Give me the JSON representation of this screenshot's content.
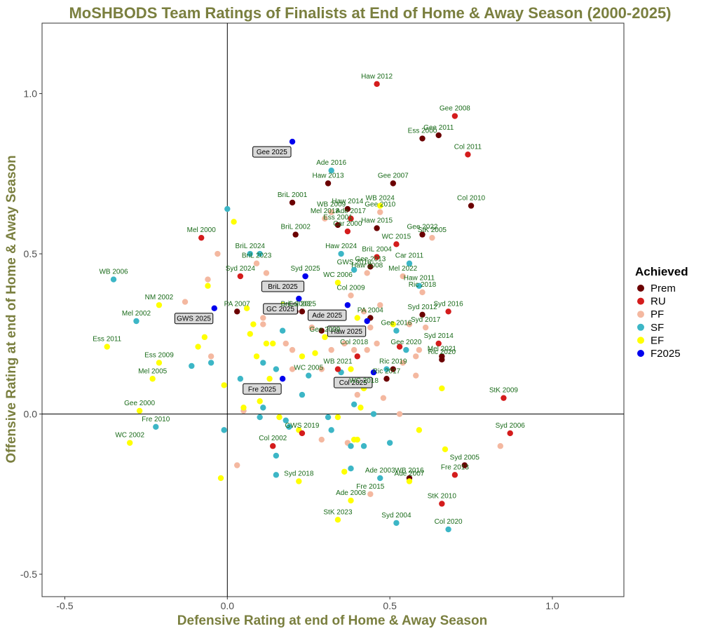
{
  "chart_data": {
    "type": "scatter",
    "title": "MoSHBODS Team Ratings of Finalists at End of Home & Away Season (2000-2025)",
    "xlabel": "Defensive Rating at end of Home & Away Season",
    "ylabel": "Offensive Rating at end of Home & Away Season",
    "xlim": [
      -0.57,
      1.22
    ],
    "ylim": [
      -0.57,
      1.22
    ],
    "xticks": [
      -0.5,
      0.0,
      0.5,
      1.0
    ],
    "xtick_labels": [
      "-0.5",
      "0.0",
      "0.5",
      "1.0"
    ],
    "yticks": [
      -0.5,
      0.0,
      0.5,
      1.0
    ],
    "ytick_labels": [
      "-0.5",
      "0.0",
      "0.5",
      "1.0"
    ],
    "reference_lines": {
      "x": 0,
      "y": 0
    },
    "grid": false,
    "legend": {
      "title": "Achieved",
      "position": "right",
      "entries": [
        {
          "name": "Prem",
          "color": "#6b0000"
        },
        {
          "name": "RU",
          "color": "#d41c1c"
        },
        {
          "name": "PF",
          "color": "#f4b8a0"
        },
        {
          "name": "SF",
          "color": "#3cb6c6"
        },
        {
          "name": "EF",
          "color": "#ffff00"
        },
        {
          "name": "F2025",
          "color": "#0000ee"
        }
      ]
    },
    "points": [
      {
        "label": "Haw 2012",
        "x": 0.46,
        "y": 1.03,
        "cat": "RU"
      },
      {
        "label": "Gee 2008",
        "x": 0.7,
        "y": 0.93,
        "cat": "RU"
      },
      {
        "label": "Gee 2011",
        "x": 0.65,
        "y": 0.87,
        "cat": "Prem"
      },
      {
        "label": "Ess 2000",
        "x": 0.6,
        "y": 0.86,
        "cat": "Prem"
      },
      {
        "label": "Col 2011",
        "x": 0.74,
        "y": 0.81,
        "cat": "RU"
      },
      {
        "label": "Gee 2025",
        "x": 0.2,
        "y": 0.85,
        "cat": "F2025",
        "boxed": true
      },
      {
        "label": "Ade 2016",
        "x": 0.32,
        "y": 0.76,
        "cat": "SF"
      },
      {
        "label": "Haw 2013",
        "x": 0.31,
        "y": 0.72,
        "cat": "Prem"
      },
      {
        "label": "Gee 2007",
        "x": 0.51,
        "y": 0.72,
        "cat": "Prem"
      },
      {
        "label": "BriL 2001",
        "x": 0.2,
        "y": 0.66,
        "cat": "Prem"
      },
      {
        "label": "WB 2024",
        "x": 0.47,
        "y": 0.65,
        "cat": "EF"
      },
      {
        "label": "Col 2010",
        "x": 0.75,
        "y": 0.65,
        "cat": "Prem"
      },
      {
        "label": "WB 2009",
        "x": 0.32,
        "y": 0.63,
        "cat": "PF"
      },
      {
        "label": "Haw 2014",
        "x": 0.37,
        "y": 0.64,
        "cat": "Prem"
      },
      {
        "label": "Gee 2010",
        "x": 0.47,
        "y": 0.63,
        "cat": "PF"
      },
      {
        "label": "Mel 2018",
        "x": 0.3,
        "y": 0.61,
        "cat": "PF"
      },
      {
        "label": "Ade 2017",
        "x": 0.38,
        "y": 0.61,
        "cat": "RU"
      },
      {
        "label": "BriL 2002",
        "x": 0.21,
        "y": 0.56,
        "cat": "Prem"
      },
      {
        "label": "Haw 2015",
        "x": 0.46,
        "y": 0.58,
        "cat": "Prem"
      },
      {
        "label": "Gee 2022",
        "x": 0.6,
        "y": 0.56,
        "cat": "Prem"
      },
      {
        "label": "Ess 2001",
        "x": 0.34,
        "y": 0.59,
        "cat": "Prem"
      },
      {
        "label": "Car 2000",
        "x": 0.37,
        "y": 0.57,
        "cat": "RU"
      },
      {
        "label": "WC 2015",
        "x": 0.52,
        "y": 0.53,
        "cat": "RU"
      },
      {
        "label": "StK 2005",
        "x": 0.63,
        "y": 0.55,
        "cat": "PF"
      },
      {
        "label": "Mel 2000",
        "x": -0.08,
        "y": 0.55,
        "cat": "RU"
      },
      {
        "label": "BriL 2024",
        "x": 0.07,
        "y": 0.5,
        "cat": "SF"
      },
      {
        "label": "BriL 2023",
        "x": 0.09,
        "y": 0.47,
        "cat": "PF"
      },
      {
        "label": "Haw 2024",
        "x": 0.35,
        "y": 0.5,
        "cat": "SF"
      },
      {
        "label": "BriL 2004",
        "x": 0.46,
        "y": 0.49,
        "cat": "RU"
      },
      {
        "label": "GWS 2016",
        "x": 0.39,
        "y": 0.45,
        "cat": "SF"
      },
      {
        "label": "Gee 2013",
        "x": 0.44,
        "y": 0.46,
        "cat": "Prem"
      },
      {
        "label": "Car 2011",
        "x": 0.56,
        "y": 0.47,
        "cat": "SF"
      },
      {
        "label": "Syd 2025",
        "x": 0.24,
        "y": 0.43,
        "cat": "F2025"
      },
      {
        "label": "BriL 2025",
        "x": 0.24,
        "y": 0.43,
        "cat": "F2025",
        "boxed": true
      },
      {
        "label": "Haw 2008",
        "x": 0.43,
        "y": 0.44,
        "cat": "PF"
      },
      {
        "label": "WC 2006",
        "x": 0.34,
        "y": 0.41,
        "cat": "EF"
      },
      {
        "label": "Mel 2022",
        "x": 0.54,
        "y": 0.43,
        "cat": "PF"
      },
      {
        "label": "WB 2006",
        "x": -0.35,
        "y": 0.42,
        "cat": "SF"
      },
      {
        "label": "Syd 2024",
        "x": 0.04,
        "y": 0.43,
        "cat": "RU"
      },
      {
        "label": "Haw 2011",
        "x": 0.59,
        "y": 0.4,
        "cat": "SF"
      },
      {
        "label": "GC 2025",
        "x": 0.22,
        "y": 0.36,
        "cat": "F2025",
        "boxed": true
      },
      {
        "label": "Col 2009",
        "x": 0.38,
        "y": 0.37,
        "cat": "PF"
      },
      {
        "label": "Ric 2018",
        "x": 0.6,
        "y": 0.38,
        "cat": "PF"
      },
      {
        "label": "NM 2002",
        "x": -0.21,
        "y": 0.34,
        "cat": "EF"
      },
      {
        "label": "PA 2007",
        "x": 0.03,
        "y": 0.32,
        "cat": "Prem"
      },
      {
        "label": "BriL 2003",
        "x": 0.21,
        "y": 0.32,
        "cat": "Prem"
      },
      {
        "label": "GWS 2025",
        "x": -0.04,
        "y": 0.33,
        "cat": "F2025",
        "boxed": true
      },
      {
        "label": "Ade 2025",
        "x": 0.37,
        "y": 0.34,
        "cat": "F2025",
        "boxed": true
      },
      {
        "label": "Syd 2012",
        "x": 0.6,
        "y": 0.31,
        "cat": "Prem"
      },
      {
        "label": "Syd 2016",
        "x": 0.68,
        "y": 0.32,
        "cat": "RU"
      },
      {
        "label": "Col 2025",
        "x": 0.23,
        "y": 0.32,
        "cat": "Prem"
      },
      {
        "label": "PA 2004",
        "x": 0.44,
        "y": 0.3,
        "cat": "Prem"
      },
      {
        "label": "Mel 2002",
        "x": -0.28,
        "y": 0.29,
        "cat": "SF"
      },
      {
        "label": "Syd 2017",
        "x": 0.61,
        "y": 0.27,
        "cat": "PF"
      },
      {
        "label": "Haw 2025",
        "x": 0.43,
        "y": 0.29,
        "cat": "F2025",
        "boxed": true
      },
      {
        "label": "Gee 2016",
        "x": 0.52,
        "y": 0.26,
        "cat": "SF"
      },
      {
        "label": "Gee 2009",
        "x": 0.3,
        "y": 0.24,
        "cat": "EF"
      },
      {
        "label": "Ess 2011",
        "x": -0.37,
        "y": 0.21,
        "cat": "EF"
      },
      {
        "label": "Syd 2014",
        "x": 0.65,
        "y": 0.22,
        "cat": "RU"
      },
      {
        "label": "Col 2018",
        "x": 0.39,
        "y": 0.2,
        "cat": "PF"
      },
      {
        "label": "Gee 2020",
        "x": 0.55,
        "y": 0.2,
        "cat": "SF"
      },
      {
        "label": "Mel 2021",
        "x": 0.66,
        "y": 0.18,
        "cat": "Prem"
      },
      {
        "label": "Ess 2009",
        "x": -0.21,
        "y": 0.16,
        "cat": "EF"
      },
      {
        "label": "WB 2021",
        "x": 0.34,
        "y": 0.14,
        "cat": "RU"
      },
      {
        "label": "Ric 2019",
        "x": 0.51,
        "y": 0.14,
        "cat": "Prem"
      },
      {
        "label": "Ric 2020",
        "x": 0.66,
        "y": 0.17,
        "cat": "Prem"
      },
      {
        "label": "Fre 2025",
        "x": 0.17,
        "y": 0.11,
        "cat": "F2025",
        "boxed": true
      },
      {
        "label": "WC 2005",
        "x": 0.25,
        "y": 0.12,
        "cat": "SF"
      },
      {
        "label": "Col 2025",
        "x": 0.45,
        "y": 0.13,
        "cat": "F2025",
        "boxed": true
      },
      {
        "label": "Mel 2005",
        "x": -0.23,
        "y": 0.11,
        "cat": "EF"
      },
      {
        "label": "WC 2018",
        "x": 0.42,
        "y": 0.08,
        "cat": "EF"
      },
      {
        "label": "Ric 2017",
        "x": 0.49,
        "y": 0.11,
        "cat": "Prem"
      },
      {
        "label": "Gee 2000",
        "x": -0.27,
        "y": 0.01,
        "cat": "EF"
      },
      {
        "label": "StK 2009",
        "x": 0.85,
        "y": 0.05,
        "cat": "RU"
      },
      {
        "label": "Fre 2010",
        "x": -0.22,
        "y": -0.04,
        "cat": "SF"
      },
      {
        "label": "GWS 2019",
        "x": 0.23,
        "y": -0.06,
        "cat": "RU"
      },
      {
        "label": "Syd 2006",
        "x": 0.87,
        "y": -0.06,
        "cat": "RU"
      },
      {
        "label": "WC 2002",
        "x": -0.3,
        "y": -0.09,
        "cat": "EF"
      },
      {
        "label": "Col 2002",
        "x": 0.14,
        "y": -0.1,
        "cat": "RU"
      },
      {
        "label": "Syd 2005",
        "x": 0.73,
        "y": -0.16,
        "cat": "Prem"
      },
      {
        "label": "Syd 2018",
        "x": 0.22,
        "y": -0.21,
        "cat": "EF"
      },
      {
        "label": "Ade 2003",
        "x": 0.47,
        "y": -0.2,
        "cat": "SF"
      },
      {
        "label": "WB 2016",
        "x": 0.56,
        "y": -0.2,
        "cat": "Prem"
      },
      {
        "label": "Fre 2013",
        "x": 0.7,
        "y": -0.19,
        "cat": "RU"
      },
      {
        "label": "Ade 2007",
        "x": 0.56,
        "y": -0.21,
        "cat": "EF"
      },
      {
        "label": "Fre 2015",
        "x": 0.44,
        "y": -0.25,
        "cat": "PF"
      },
      {
        "label": "StK 2010",
        "x": 0.66,
        "y": -0.28,
        "cat": "RU"
      },
      {
        "label": "Ade 2008",
        "x": 0.38,
        "y": -0.27,
        "cat": "EF"
      },
      {
        "label": "Syd 2004",
        "x": 0.52,
        "y": -0.34,
        "cat": "SF"
      },
      {
        "label": "StK 2023",
        "x": 0.34,
        "y": -0.33,
        "cat": "EF"
      },
      {
        "label": "Col 2020",
        "x": 0.68,
        "y": -0.36,
        "cat": "SF"
      }
    ],
    "unlabeled_points": [
      [
        -0.03,
        0.5,
        "PF"
      ],
      [
        0.02,
        0.6,
        "EF"
      ],
      [
        0.0,
        0.64,
        "SF"
      ],
      [
        0.1,
        0.5,
        "SF"
      ],
      [
        0.12,
        0.44,
        "PF"
      ],
      [
        -0.06,
        0.42,
        "PF"
      ],
      [
        -0.06,
        0.4,
        "EF"
      ],
      [
        -0.13,
        0.35,
        "PF"
      ],
      [
        0.06,
        0.33,
        "EF"
      ],
      [
        0.11,
        0.3,
        "PF"
      ],
      [
        0.17,
        0.34,
        "EF"
      ],
      [
        0.14,
        0.32,
        "PF"
      ],
      [
        0.08,
        0.28,
        "EF"
      ],
      [
        0.11,
        0.28,
        "PF"
      ],
      [
        0.17,
        0.26,
        "SF"
      ],
      [
        0.07,
        0.25,
        "EF"
      ],
      [
        0.26,
        0.27,
        "PF"
      ],
      [
        0.29,
        0.26,
        "Prem"
      ],
      [
        0.37,
        0.26,
        "SF"
      ],
      [
        0.4,
        0.3,
        "EF"
      ],
      [
        0.42,
        0.32,
        "PF"
      ],
      [
        0.47,
        0.34,
        "PF"
      ],
      [
        0.44,
        0.27,
        "PF"
      ],
      [
        0.51,
        0.28,
        "EF"
      ],
      [
        0.56,
        0.28,
        "PF"
      ],
      [
        0.12,
        0.22,
        "EF"
      ],
      [
        0.14,
        0.22,
        "EF"
      ],
      [
        0.18,
        0.22,
        "PF"
      ],
      [
        -0.07,
        0.24,
        "EF"
      ],
      [
        -0.05,
        0.18,
        "PF"
      ],
      [
        -0.09,
        0.21,
        "EF"
      ],
      [
        0.09,
        0.18,
        "EF"
      ],
      [
        0.2,
        0.2,
        "PF"
      ],
      [
        0.23,
        0.18,
        "EF"
      ],
      [
        0.27,
        0.19,
        "EF"
      ],
      [
        0.32,
        0.2,
        "PF"
      ],
      [
        0.36,
        0.22,
        "PF"
      ],
      [
        0.4,
        0.18,
        "RU"
      ],
      [
        0.43,
        0.2,
        "PF"
      ],
      [
        0.46,
        0.22,
        "PF"
      ],
      [
        0.53,
        0.21,
        "RU"
      ],
      [
        0.58,
        0.18,
        "PF"
      ],
      [
        0.59,
        0.2,
        "PF"
      ],
      [
        -0.11,
        0.15,
        "SF"
      ],
      [
        -0.05,
        0.16,
        "SF"
      ],
      [
        0.11,
        0.16,
        "SF"
      ],
      [
        0.15,
        0.14,
        "SF"
      ],
      [
        0.2,
        0.14,
        "PF"
      ],
      [
        0.29,
        0.14,
        "PF"
      ],
      [
        0.35,
        0.13,
        "SF"
      ],
      [
        0.38,
        0.14,
        "EF"
      ],
      [
        0.49,
        0.14,
        "SF"
      ],
      [
        0.54,
        0.16,
        "PF"
      ],
      [
        0.58,
        0.12,
        "PF"
      ],
      [
        0.04,
        0.11,
        "SF"
      ],
      [
        0.13,
        0.11,
        "EF"
      ],
      [
        -0.01,
        0.09,
        "EF"
      ],
      [
        0.23,
        0.06,
        "SF"
      ],
      [
        0.4,
        0.06,
        "PF"
      ],
      [
        0.48,
        0.05,
        "PF"
      ],
      [
        0.66,
        0.08,
        "EF"
      ],
      [
        0.1,
        0.04,
        "EF"
      ],
      [
        0.11,
        0.02,
        "SF"
      ],
      [
        0.05,
        0.01,
        "PF"
      ],
      [
        0.05,
        0.02,
        "EF"
      ],
      [
        0.39,
        0.03,
        "SF"
      ],
      [
        0.41,
        0.02,
        "EF"
      ],
      [
        0.45,
        0.0,
        "SF"
      ],
      [
        0.53,
        0.0,
        "PF"
      ],
      [
        0.1,
        -0.01,
        "SF"
      ],
      [
        0.16,
        -0.01,
        "EF"
      ],
      [
        0.18,
        -0.02,
        "SF"
      ],
      [
        0.31,
        -0.01,
        "SF"
      ],
      [
        0.34,
        -0.01,
        "EF"
      ],
      [
        0.19,
        -0.04,
        "SF"
      ],
      [
        0.22,
        -0.05,
        "EF"
      ],
      [
        0.32,
        -0.05,
        "SF"
      ],
      [
        -0.01,
        -0.05,
        "SF"
      ],
      [
        0.39,
        -0.08,
        "EF"
      ],
      [
        0.37,
        -0.09,
        "PF"
      ],
      [
        0.38,
        -0.1,
        "SF"
      ],
      [
        0.42,
        -0.1,
        "SF"
      ],
      [
        0.4,
        -0.08,
        "EF"
      ],
      [
        0.59,
        -0.05,
        "EF"
      ],
      [
        0.5,
        -0.09,
        "SF"
      ],
      [
        0.67,
        -0.11,
        "EF"
      ],
      [
        0.84,
        -0.1,
        "PF"
      ],
      [
        0.29,
        -0.08,
        "PF"
      ],
      [
        0.15,
        -0.13,
        "SF"
      ],
      [
        0.03,
        -0.16,
        "PF"
      ],
      [
        -0.02,
        -0.2,
        "EF"
      ],
      [
        0.15,
        -0.19,
        "SF"
      ],
      [
        0.36,
        -0.18,
        "EF"
      ],
      [
        0.38,
        -0.17,
        "SF"
      ]
    ]
  }
}
